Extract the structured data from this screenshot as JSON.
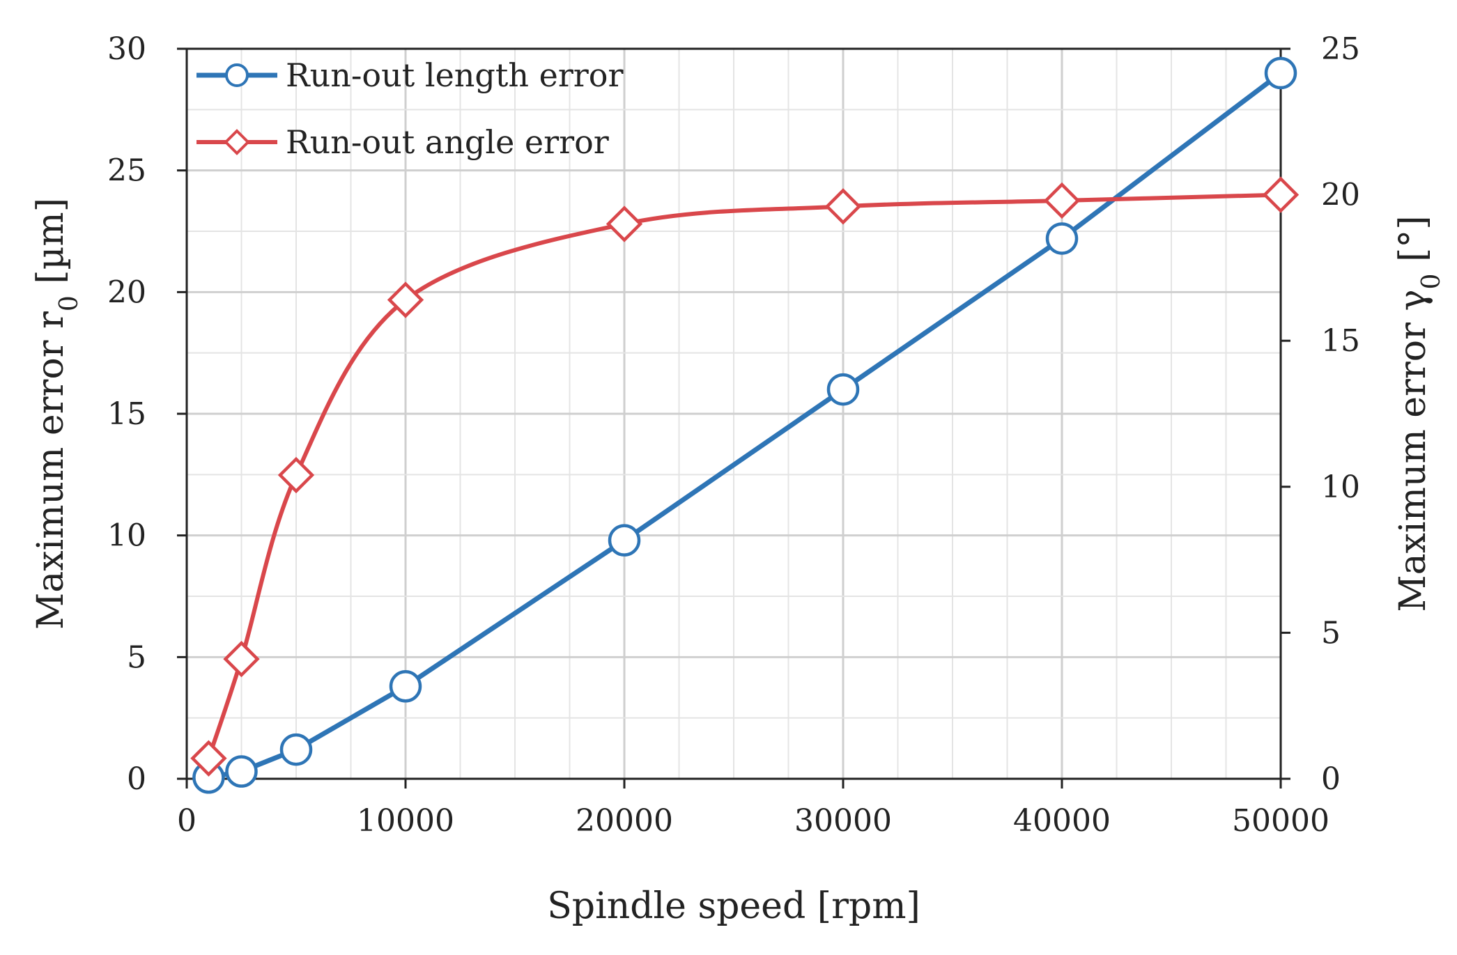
{
  "chart_data": {
    "type": "line",
    "title": "",
    "xlabel": "Spindle speed [rpm]",
    "ylabel_left": {
      "prefix": "Maximum error r",
      "subscript": "0",
      "suffix": " [µm]"
    },
    "ylabel_right": {
      "prefix": "Maximum error γ",
      "subscript": "0",
      "suffix": " [°]"
    },
    "xlim": [
      0,
      50000
    ],
    "ylim_left": [
      0,
      30
    ],
    "ylim_right": [
      0,
      25
    ],
    "xticks": [
      "0",
      "10000",
      "20000",
      "30000",
      "40000",
      "50000"
    ],
    "yticks_left": [
      "0",
      "5",
      "10",
      "15",
      "20",
      "25",
      "30"
    ],
    "yticks_right": [
      "0",
      "5",
      "10",
      "15",
      "20",
      "25"
    ],
    "grid": true,
    "legend_position": "top-left",
    "series": [
      {
        "name": "Run-out length error",
        "axis": "left",
        "color": "#2E75B6",
        "marker": "circle",
        "smooth": false,
        "x": [
          1000,
          2500,
          5000,
          10000,
          20000,
          30000,
          40000,
          50000
        ],
        "values": [
          0.05,
          0.3,
          1.2,
          3.8,
          9.8,
          16.0,
          22.2,
          29.0
        ]
      },
      {
        "name": "Run-out angle error",
        "axis": "right",
        "color": "#D9474B",
        "marker": "diamond",
        "smooth": true,
        "x": [
          1000,
          2500,
          5000,
          10000,
          20000,
          30000,
          40000,
          50000
        ],
        "values": [
          0.7,
          4.1,
          10.4,
          16.4,
          19.0,
          19.6,
          19.8,
          20.0
        ]
      }
    ]
  }
}
